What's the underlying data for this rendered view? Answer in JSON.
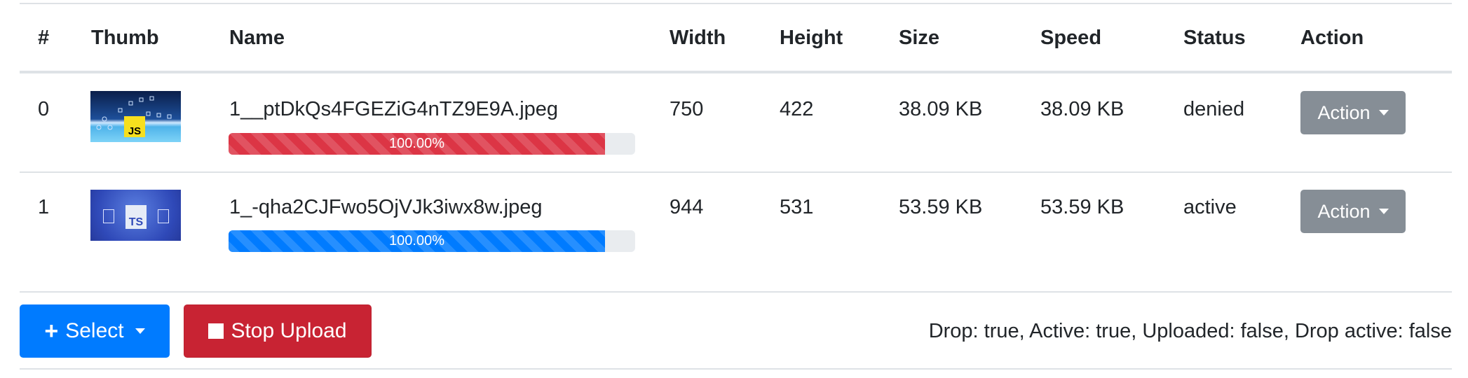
{
  "table": {
    "headers": [
      "#",
      "Thumb",
      "Name",
      "Width",
      "Height",
      "Size",
      "Speed",
      "Status",
      "Action"
    ],
    "rows": [
      {
        "index": "0",
        "thumb": "javascript-thumbnail",
        "name": "1__ptDkQs4FGEZiG4nTZ9E9A.jpeg",
        "progress": "100.00%",
        "progress_value": 100,
        "progress_color": "#dc3545",
        "width": "750",
        "height": "422",
        "size": "38.09 KB",
        "speed": "38.09 KB",
        "status": "denied",
        "action": "Action"
      },
      {
        "index": "1",
        "thumb": "typescript-thumbnail",
        "name": "1_-qha2CJFwo5OjVJk3iwx8w.jpeg",
        "progress": "100.00%",
        "progress_value": 100,
        "progress_color": "#007bff",
        "width": "944",
        "height": "531",
        "size": "53.59 KB",
        "speed": "53.59 KB",
        "status": "active",
        "action": "Action"
      }
    ]
  },
  "footer": {
    "select_label": "Select",
    "stop_label": "Stop Upload",
    "status_text": "Drop: true, Active: true, Uploaded: false, Drop active: false"
  },
  "colors": {
    "primary": "#007bff",
    "danger": "#c82333",
    "secondary": "#868e96"
  }
}
